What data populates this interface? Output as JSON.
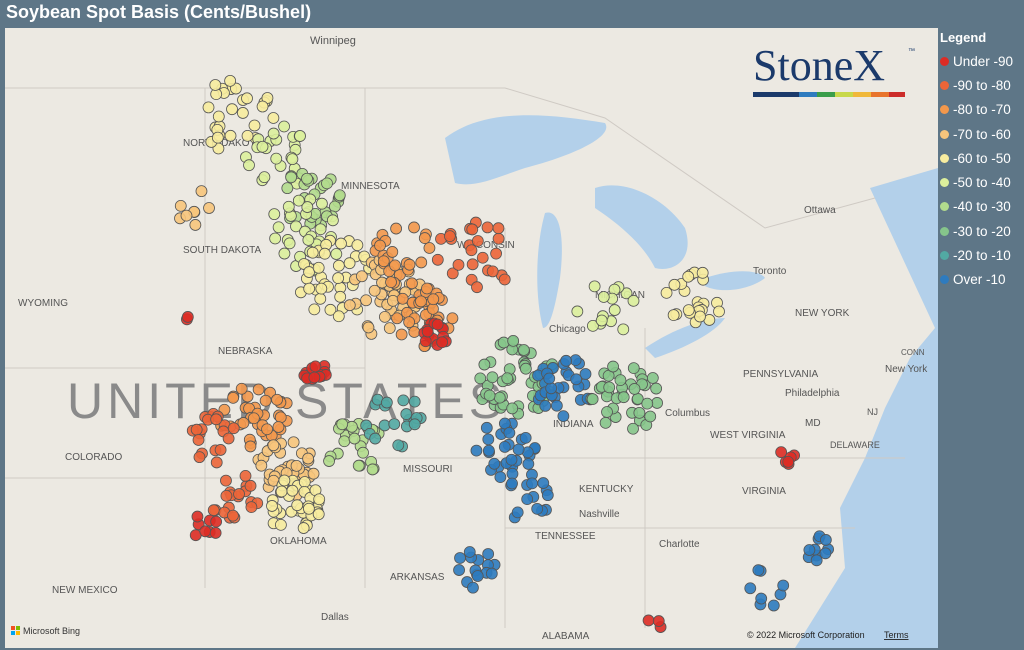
{
  "title": "Soybean Spot Basis (Cents/Bushel)",
  "legend": {
    "title": "Legend",
    "items": [
      {
        "label": "Under -90",
        "color": "#dd2c25"
      },
      {
        "label": "-90 to -80",
        "color": "#ec6538"
      },
      {
        "label": "-80 to -70",
        "color": "#f3984c"
      },
      {
        "label": "-70 to -60",
        "color": "#f7c57c"
      },
      {
        "label": "-60 to -50",
        "color": "#f7ec9f"
      },
      {
        "label": "-50 to -40",
        "color": "#dcef9c"
      },
      {
        "label": "-40 to -30",
        "color": "#b2db8d"
      },
      {
        "label": "-30 to -20",
        "color": "#86c58b"
      },
      {
        "label": "-20 to -10",
        "color": "#52a9a3"
      },
      {
        "label": "Over -10",
        "color": "#2e7bbf"
      }
    ]
  },
  "logo": {
    "text": "StoneX",
    "mark": "™"
  },
  "map_labels": [
    "Winnipeg",
    "NORTH DAKOTA",
    "MINNESOTA",
    "SOUTH DAKOTA",
    "WISCONSIN",
    "MICHIGAN",
    "WYOMING",
    "NEBRASKA",
    "Chicago",
    "UNITED STATES",
    "COLORADO",
    "MISSOURI",
    "INDIANA",
    "Columbus",
    "PENNSYLVANIA",
    "Philadelphia",
    "NEW YORK",
    "New York",
    "WEST VIRGINIA",
    "VIRGINIA",
    "KENTUCKY",
    "Nashville",
    "TENNESSEE",
    "Charlotte",
    "OKLAHOMA",
    "ARKANSAS",
    "NEW MEXICO",
    "Dallas",
    "ALABAMA",
    "Ottawa",
    "Toronto",
    "DELAWARE",
    "NJ",
    "MD",
    "CONN"
  ],
  "attribution": {
    "provider": "Microsoft Bing",
    "copyright": "© 2022 Microsoft Corporation",
    "terms": "Terms"
  }
}
